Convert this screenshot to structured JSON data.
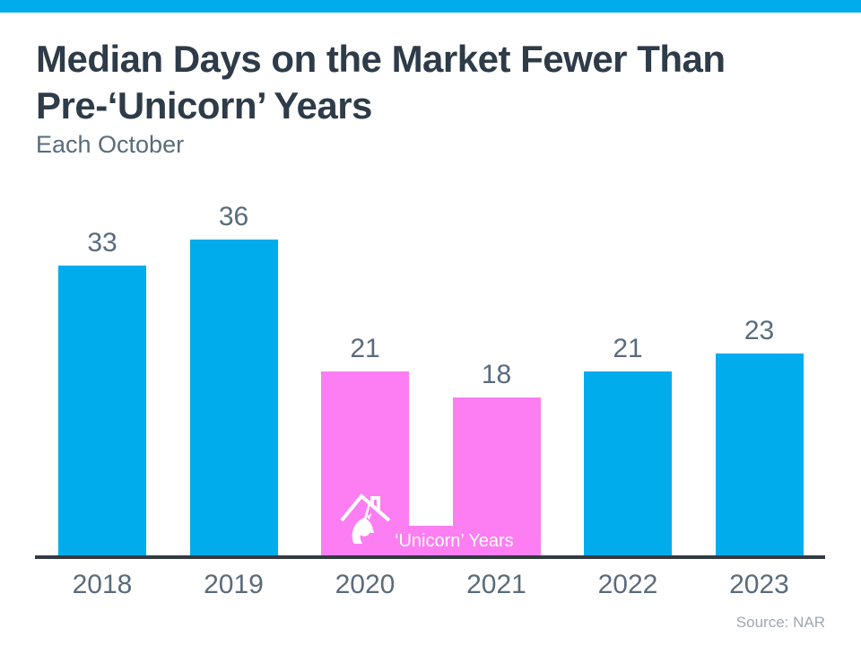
{
  "page": {
    "title": "Median Days on the Market Fewer Than\nPre-‘Unicorn’ Years",
    "subtitle": "Each October",
    "source": "Source: NAR",
    "accent_color": "#00ACEC"
  },
  "chart_data": {
    "type": "bar",
    "title": "Median Days on the Market Fewer Than Pre-‘Unicorn’ Years",
    "subtitle": "Each October",
    "categories": [
      "2018",
      "2019",
      "2020",
      "2021",
      "2022",
      "2023"
    ],
    "values": [
      33,
      36,
      21,
      18,
      21,
      23
    ],
    "data_labels": [
      33,
      36,
      21,
      18,
      21,
      23
    ],
    "xlabel": "",
    "ylabel": "",
    "ylim": [
      0,
      36
    ],
    "grid": false,
    "legend": "none",
    "unicorn_years": [
      "2020",
      "2021"
    ],
    "unicorn_label": "‘Unicorn’ Years",
    "source": "Source: NAR",
    "colors": {
      "bar_regular": "#00ACEC",
      "bar_unicorn": "#FC7EF2",
      "label_text": "#5A6B7B",
      "axis_line": "#333A42",
      "title_text": "#2E3B48",
      "subtitle_text": "#5A6B7B",
      "source_text": "#9FA8B0",
      "unicorn_label_text": "#FFFFFF"
    }
  }
}
